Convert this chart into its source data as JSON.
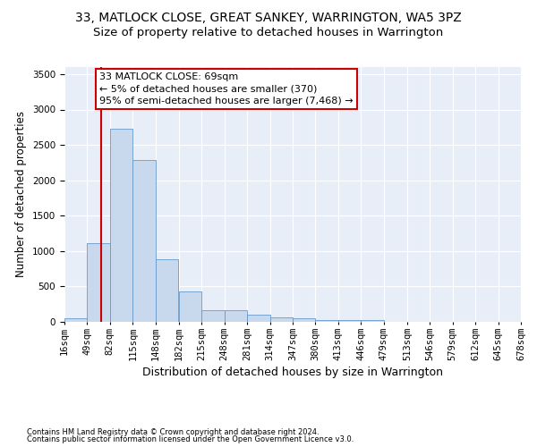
{
  "title": "33, MATLOCK CLOSE, GREAT SANKEY, WARRINGTON, WA5 3PZ",
  "subtitle": "Size of property relative to detached houses in Warrington",
  "xlabel": "Distribution of detached houses by size in Warrington",
  "ylabel": "Number of detached properties",
  "footnote1": "Contains HM Land Registry data © Crown copyright and database right 2024.",
  "footnote2": "Contains public sector information licensed under the Open Government Licence v3.0.",
  "annotation_title": "33 MATLOCK CLOSE: 69sqm",
  "annotation_line1": "← 5% of detached houses are smaller (370)",
  "annotation_line2": "95% of semi-detached houses are larger (7,468) →",
  "bar_color": "#c8d9ee",
  "bar_edge_color": "#6699cc",
  "vline_x": 69,
  "vline_color": "#cc0000",
  "bin_edges": [
    16,
    49,
    82,
    115,
    148,
    182,
    215,
    248,
    281,
    314,
    347,
    380,
    413,
    446,
    479,
    513,
    546,
    579,
    612,
    645,
    678
  ],
  "bar_heights": [
    55,
    1110,
    2730,
    2290,
    880,
    430,
    170,
    170,
    95,
    60,
    50,
    30,
    25,
    20,
    5,
    0,
    0,
    0,
    0,
    0
  ],
  "ylim": [
    0,
    3600
  ],
  "yticks": [
    0,
    500,
    1000,
    1500,
    2000,
    2500,
    3000,
    3500
  ],
  "bg_color": "#e8eef8",
  "grid_color": "#ffffff",
  "title_fontsize": 10,
  "subtitle_fontsize": 9.5,
  "ylabel_fontsize": 8.5,
  "xlabel_fontsize": 9,
  "tick_fontsize": 7.5,
  "footnote_fontsize": 6,
  "ann_fontsize": 8
}
